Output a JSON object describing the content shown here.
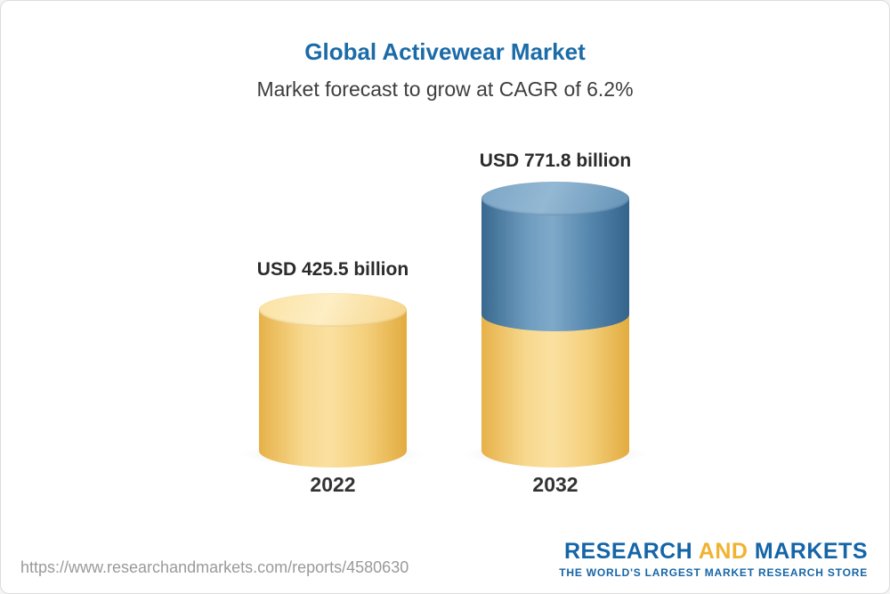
{
  "page": {
    "background": "#ffffff",
    "border_color": "#dcdcdc"
  },
  "chart_data": {
    "type": "bar",
    "title": "Global Activewear Market",
    "subtitle": "Market forecast to grow at CAGR of 6.2%",
    "categories": [
      "2022",
      "2032"
    ],
    "values": [
      425.5,
      771.8
    ],
    "unit": "USD billion",
    "value_labels": [
      "USD 425.5 billion",
      "USD 771.8 billion"
    ],
    "cagr": "6.2%",
    "legend_position": "none",
    "grid": false,
    "colors": {
      "title": "#1b6ba8",
      "bar_2022": "#f6cf7d",
      "bar_2032_base": "#f6cf7d",
      "bar_2032_growth": "#4c7fa9"
    }
  },
  "footer": {
    "url": "https://www.researchandmarkets.com/reports/4580630",
    "logo": {
      "part1": "RESEARCH",
      "part2": "AND",
      "part3": "MARKETS",
      "tagline": "THE WORLD'S LARGEST MARKET RESEARCH STORE"
    }
  }
}
